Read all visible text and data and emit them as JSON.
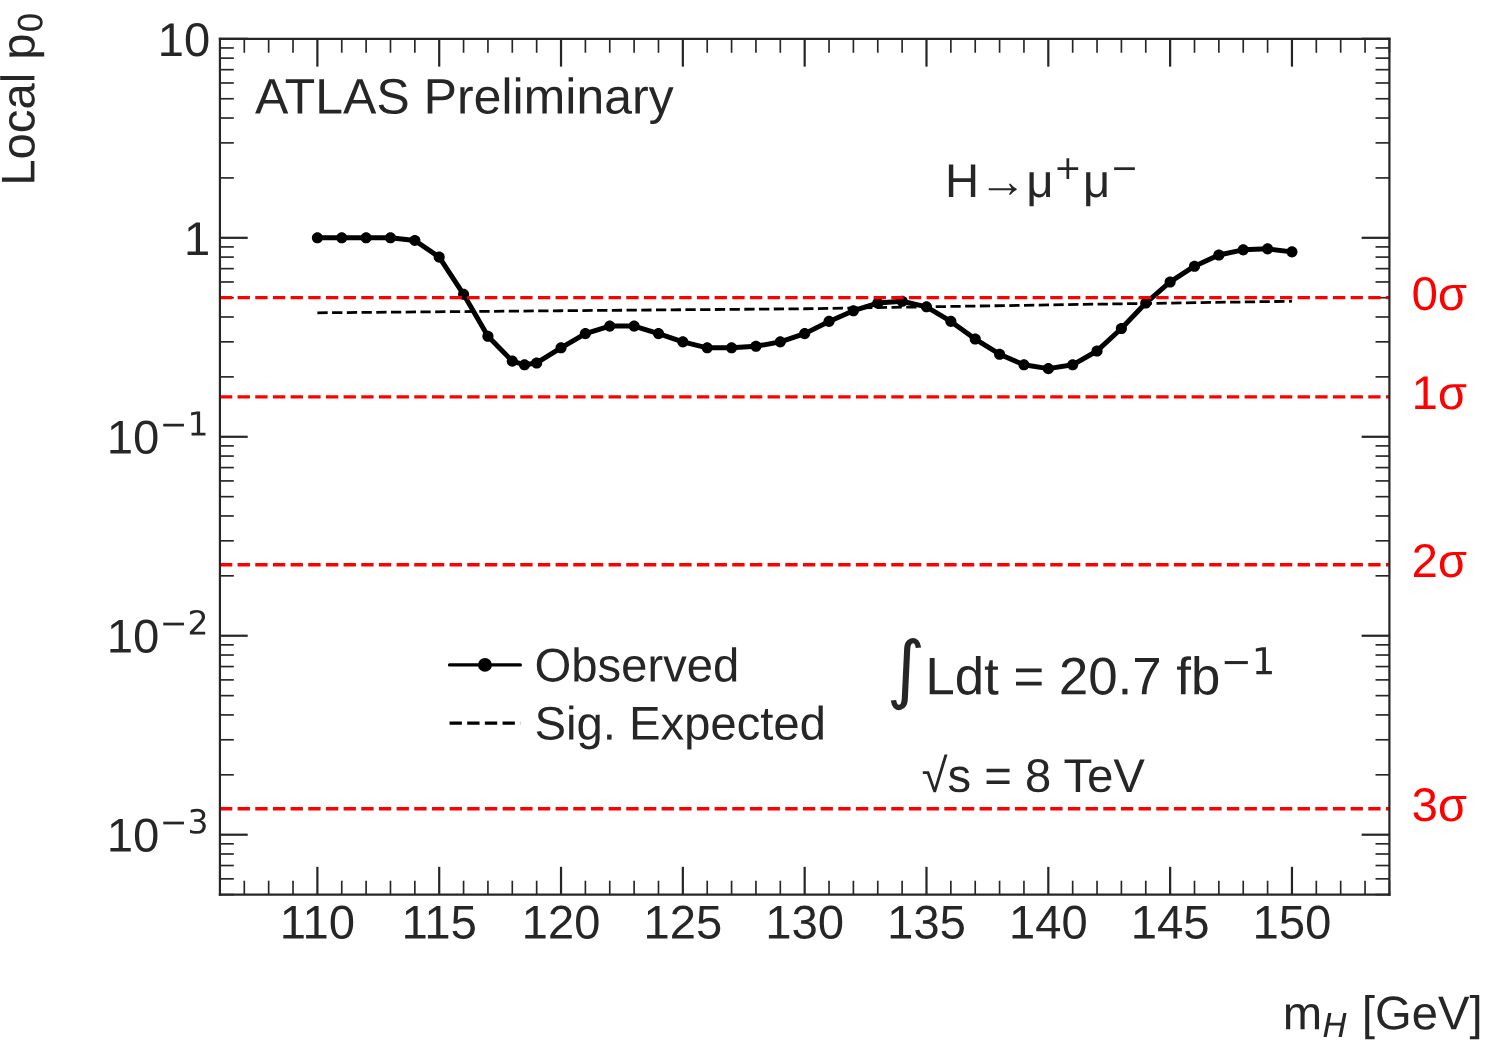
{
  "chart_data": {
    "type": "line",
    "xlabel": "m$_{H}$ [GeV]",
    "ylabel": "Local p$_{0}$",
    "annotations": [
      "ATLAS Preliminary",
      "H→μ$^{+}$μ$^{−}$",
      "∫Ldt = 20.7 fb$^{−1}$",
      "√s = 8 TeV"
    ],
    "series": [
      {
        "name": "Observed",
        "color": "#000000",
        "marker": "circle",
        "line_style": "solid",
        "x": [
          110,
          111,
          112,
          113,
          114,
          115,
          116,
          117,
          118,
          118.5,
          119,
          120,
          121,
          122,
          123,
          124,
          125,
          126,
          127,
          128,
          129,
          130,
          131,
          132,
          133,
          134,
          135,
          136,
          137,
          138,
          139,
          140,
          141,
          142,
          143,
          144,
          145,
          146,
          147,
          148,
          149,
          150
        ],
        "values": [
          1.0,
          1.0,
          1.0,
          1.0,
          0.97,
          0.8,
          0.52,
          0.32,
          0.24,
          0.23,
          0.235,
          0.28,
          0.33,
          0.36,
          0.36,
          0.33,
          0.3,
          0.28,
          0.28,
          0.285,
          0.3,
          0.33,
          0.38,
          0.43,
          0.47,
          0.48,
          0.45,
          0.38,
          0.31,
          0.26,
          0.23,
          0.22,
          0.23,
          0.27,
          0.35,
          0.47,
          0.6,
          0.72,
          0.82,
          0.87,
          0.88,
          0.85
        ]
      },
      {
        "name": "Sig. Expected",
        "color": "#000000",
        "marker": "none",
        "line_style": "dashed",
        "x": [
          110,
          120,
          130,
          140,
          150
        ],
        "values": [
          0.42,
          0.43,
          0.44,
          0.46,
          0.48
        ]
      }
    ],
    "xlim": [
      106,
      154
    ],
    "xticks": [
      110,
      115,
      120,
      125,
      130,
      135,
      140,
      145,
      150
    ],
    "ylim": [
      0.0005,
      10
    ],
    "log": true,
    "yticks": [
      {
        "value": 0.001,
        "label": "10$^{−3}$"
      },
      {
        "value": 0.01,
        "label": "10$^{−2}$"
      },
      {
        "value": 0.1,
        "label": "10$^{−1}$"
      },
      1,
      10
    ],
    "ref_lines": [
      {
        "axis": "y",
        "value": 0.5,
        "label": "0σ",
        "color": "#ff0000",
        "line_style": "dashed"
      },
      {
        "axis": "y",
        "value": 0.1587,
        "label": "1σ",
        "color": "#ff0000",
        "line_style": "dashed"
      },
      {
        "axis": "y",
        "value": 0.02275,
        "label": "2σ",
        "color": "#ff0000",
        "line_style": "dashed"
      },
      {
        "axis": "y",
        "value": 0.00135,
        "label": "3σ",
        "color": "#ff0000",
        "line_style": "dashed"
      }
    ],
    "legend": "bottom left",
    "grid": false
  }
}
